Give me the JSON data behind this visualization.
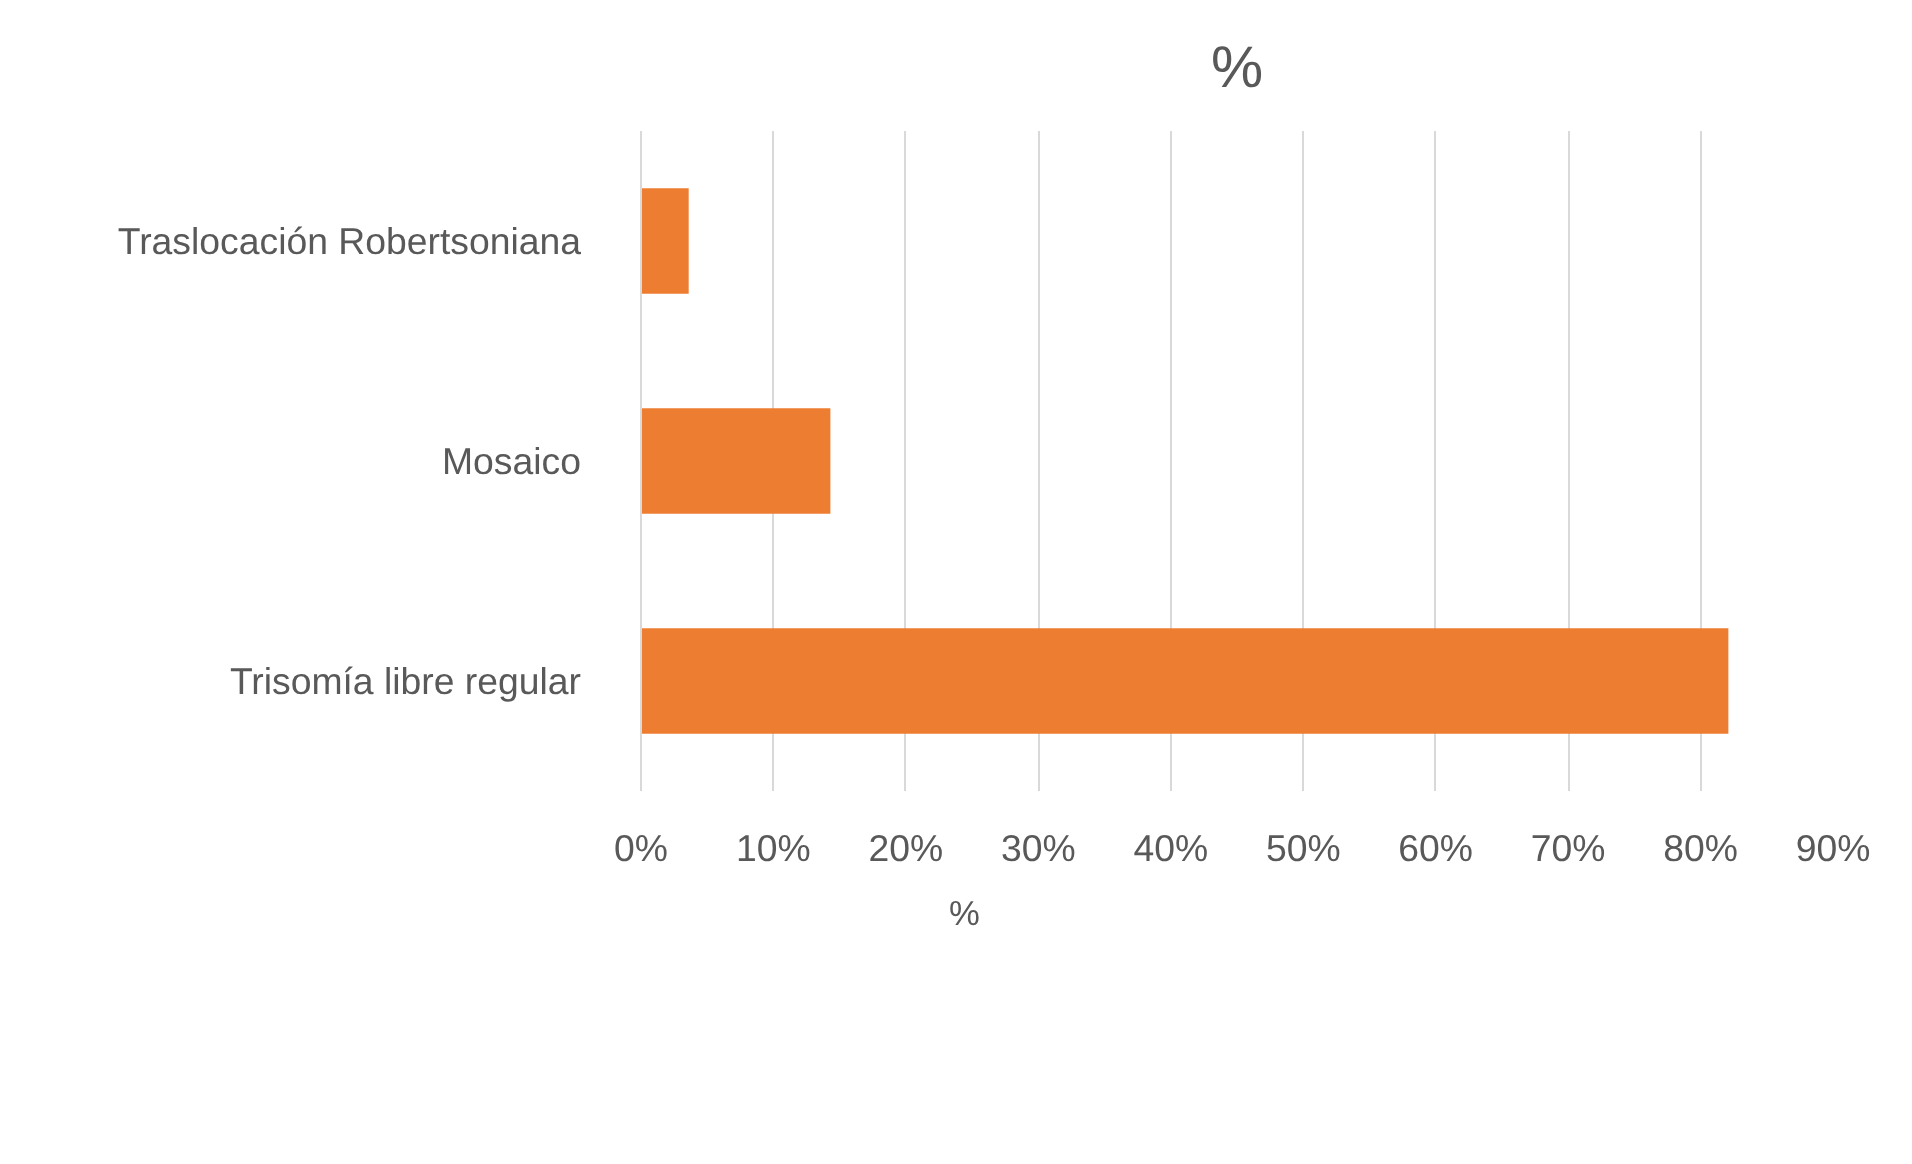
{
  "chart_data": {
    "type": "bar",
    "orientation": "horizontal",
    "title": "%",
    "categories": [
      "Traslocación Robertsoniana",
      "Mosaico",
      "Trisomía libre regular"
    ],
    "series": [
      {
        "name": "%",
        "color": "#ed7d31",
        "values": [
          3.6,
          14.3,
          82.1
        ]
      }
    ],
    "xlim": [
      0,
      90
    ],
    "xticks": [
      {
        "value": 0,
        "label": "0%"
      },
      {
        "value": 10,
        "label": "10%"
      },
      {
        "value": 20,
        "label": "20%"
      },
      {
        "value": 30,
        "label": "30%"
      },
      {
        "value": 40,
        "label": "40%"
      },
      {
        "value": 50,
        "label": "50%"
      },
      {
        "value": 60,
        "label": "60%"
      },
      {
        "value": 70,
        "label": "70%"
      },
      {
        "value": 80,
        "label": "80%"
      },
      {
        "value": 90,
        "label": "90%"
      }
    ],
    "grid": "x",
    "legend": "bottom"
  }
}
